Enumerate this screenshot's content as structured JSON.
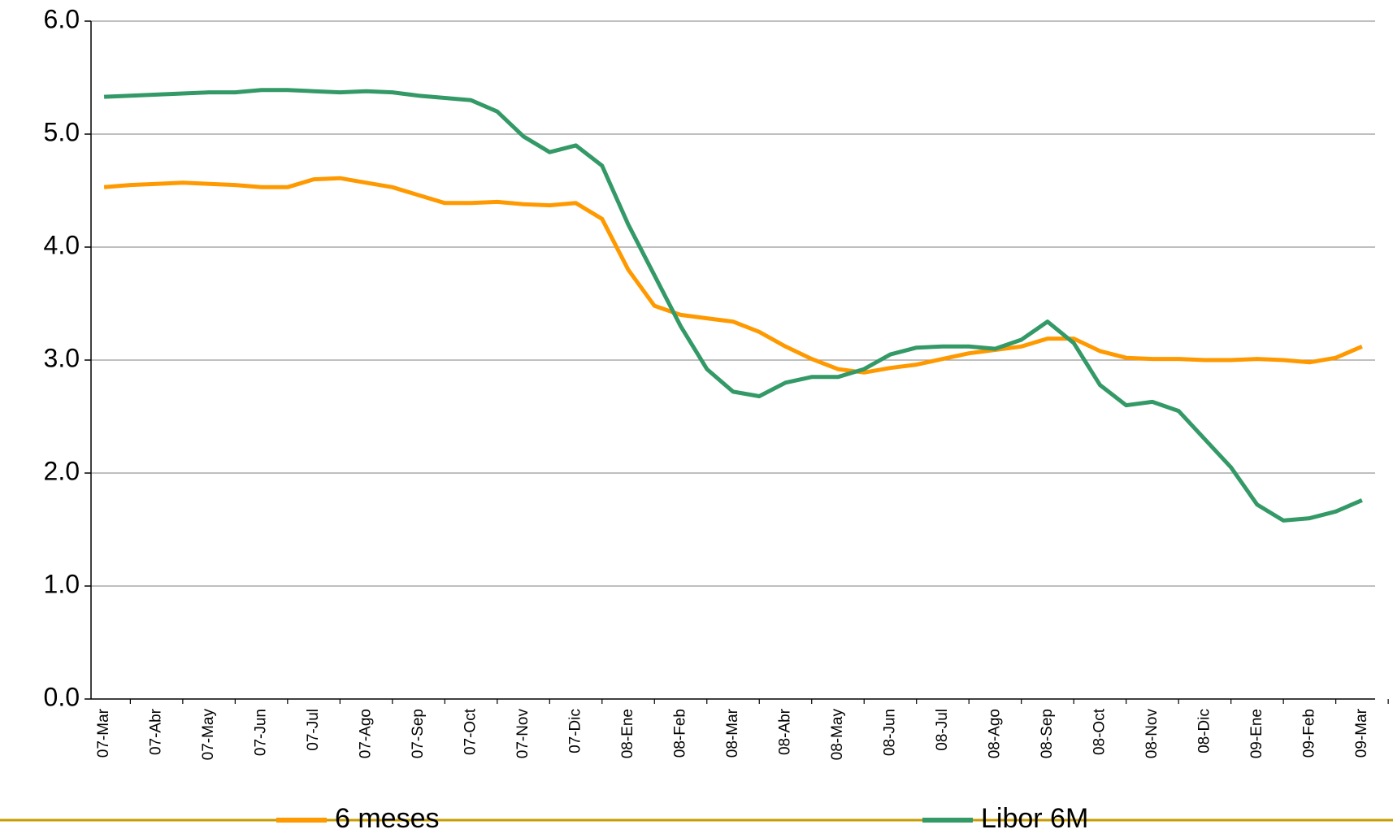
{
  "chart_data": {
    "type": "line",
    "categories": [
      "07-Mar",
      null,
      "07-Abr",
      null,
      "07-May",
      null,
      "07-Jun",
      null,
      "07-Jul",
      null,
      "07-Ago",
      null,
      "07-Sep",
      null,
      "07-Oct",
      null,
      "07-Nov",
      null,
      "07-Dic",
      null,
      "08-Ene",
      null,
      "08-Feb",
      null,
      "08-Mar",
      null,
      "08-Abr",
      null,
      "08-May",
      null,
      "08-Jun",
      null,
      "08-Jul",
      null,
      "08-Ago",
      null,
      "08-Sep",
      null,
      "08-Oct",
      null,
      "08-Nov",
      null,
      "08-Dic",
      null,
      "09-Ene",
      null,
      "09-Feb",
      null,
      "09-Mar"
    ],
    "series": [
      {
        "name": "6 meses",
        "color": "#ff9900",
        "values": [
          4.53,
          4.55,
          4.56,
          4.57,
          4.56,
          4.55,
          4.53,
          4.53,
          4.6,
          4.61,
          4.57,
          4.53,
          4.46,
          4.39,
          4.39,
          4.4,
          4.38,
          4.37,
          4.39,
          4.25,
          3.8,
          3.48,
          3.4,
          3.37,
          3.34,
          3.25,
          3.12,
          3.01,
          2.92,
          2.89,
          2.93,
          2.96,
          3.01,
          3.06,
          3.09,
          3.12,
          3.19,
          3.19,
          3.08,
          3.02,
          3.01,
          3.01,
          3.0,
          3.0,
          3.01,
          3.0,
          2.98,
          3.02,
          3.12
        ]
      },
      {
        "name": "Libor 6M",
        "color": "#339966",
        "values": [
          5.33,
          5.34,
          5.35,
          5.36,
          5.37,
          5.37,
          5.39,
          5.39,
          5.38,
          5.37,
          5.38,
          5.37,
          5.34,
          5.32,
          5.3,
          5.2,
          4.98,
          4.84,
          4.9,
          4.72,
          4.2,
          3.75,
          3.3,
          2.92,
          2.72,
          2.68,
          2.8,
          2.85,
          2.85,
          2.92,
          3.05,
          3.11,
          3.12,
          3.12,
          3.1,
          3.18,
          3.34,
          3.15,
          2.78,
          2.6,
          2.63,
          2.55,
          2.3,
          2.05,
          1.72,
          1.58,
          1.6,
          1.66,
          1.76
        ]
      }
    ],
    "ylim": [
      0,
      6
    ],
    "yticks": [
      {
        "value": 0,
        "label": "0.0"
      },
      {
        "value": 1,
        "label": "1.0"
      },
      {
        "value": 2,
        "label": "2.0"
      },
      {
        "value": 3,
        "label": "3.0"
      },
      {
        "value": 4,
        "label": "4.0"
      },
      {
        "value": 5,
        "label": "5.0"
      },
      {
        "value": 6,
        "label": "6.0"
      }
    ],
    "grid": true,
    "legend": "bottom"
  }
}
